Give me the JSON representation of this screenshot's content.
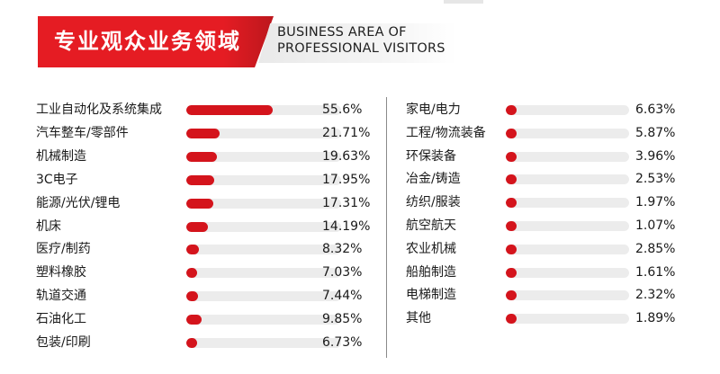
{
  "header": {
    "title": "专业观众业务领域",
    "subtitle_line1": "BUSINESS AREA OF",
    "subtitle_line2": "PROFESSIONAL VISITORS",
    "accent_color": "#e51c23"
  },
  "chart_data": {
    "type": "bar",
    "orientation": "horizontal",
    "bar_color": "#d4141c",
    "track_color": "#ececec",
    "xlim": [
      0,
      100
    ],
    "columns": [
      {
        "categories": [
          "工业自动化及系统集成",
          "汽车整车/零部件",
          "机械制造",
          "3C电子",
          "能源/光伏/锂电",
          "机床",
          "医疗/制药",
          "塑料橡胶",
          "轨道交通",
          "石油化工",
          "包装/印刷"
        ],
        "values": [
          55.6,
          21.71,
          19.63,
          17.95,
          17.31,
          14.19,
          8.32,
          7.03,
          7.44,
          9.85,
          6.73
        ],
        "labels": [
          "55.6%",
          "21.71%",
          "19.63%",
          "17.95%",
          "17.31%",
          "14.19%",
          "8.32%",
          "7.03%",
          "7.44%",
          "9.85%",
          "6.73%"
        ]
      },
      {
        "categories": [
          "家电/电力",
          "工程/物流装备",
          "环保装备",
          "冶金/铸造",
          "纺织/服装",
          "航空航天",
          "农业机械",
          "船舶制造",
          "电梯制造",
          "其他"
        ],
        "values": [
          6.63,
          5.87,
          3.96,
          2.53,
          1.97,
          1.07,
          2.85,
          1.61,
          2.32,
          1.89
        ],
        "labels": [
          "6.63%",
          "5.87%",
          "3.96%",
          "2.53%",
          "1.97%",
          "1.07%",
          "2.85%",
          "1.61%",
          "2.32%",
          "1.89%"
        ]
      }
    ]
  }
}
